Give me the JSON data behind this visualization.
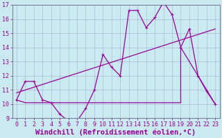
{
  "xlabel": "Windchill (Refroidissement éolien,°C)",
  "bg_color": "#c8eaf0",
  "grid_color": "#b0b8d8",
  "line_color": "#990099",
  "xlim": [
    -0.5,
    23.5
  ],
  "ylim": [
    9,
    17
  ],
  "yticks": [
    9,
    10,
    11,
    12,
    13,
    14,
    15,
    16,
    17
  ],
  "xticks": [
    0,
    1,
    2,
    3,
    4,
    5,
    6,
    7,
    8,
    9,
    10,
    11,
    12,
    13,
    14,
    15,
    16,
    17,
    18,
    19,
    20,
    21,
    22,
    23
  ],
  "series1_x": [
    0,
    1,
    2,
    3,
    4,
    5,
    6,
    7,
    8,
    9,
    10,
    11,
    12,
    13,
    14,
    15,
    16,
    17,
    18,
    19,
    20,
    21,
    22,
    23
  ],
  "series1_y": [
    10.3,
    11.6,
    11.6,
    10.3,
    10.1,
    9.3,
    8.8,
    8.8,
    9.7,
    11.0,
    13.5,
    12.6,
    12.0,
    16.6,
    16.6,
    15.4,
    16.1,
    17.2,
    16.3,
    14.0,
    15.3,
    12.0,
    10.9,
    10.0
  ],
  "series2_x": [
    0,
    1,
    3,
    4,
    9,
    19,
    19,
    23
  ],
  "series2_y": [
    10.3,
    10.1,
    10.1,
    10.1,
    10.1,
    10.1,
    14.0,
    10.0
  ],
  "series3_x": [
    0,
    23
  ],
  "series3_y": [
    10.8,
    15.3
  ],
  "tick_fontsize": 6,
  "xlabel_fontsize": 7.5
}
